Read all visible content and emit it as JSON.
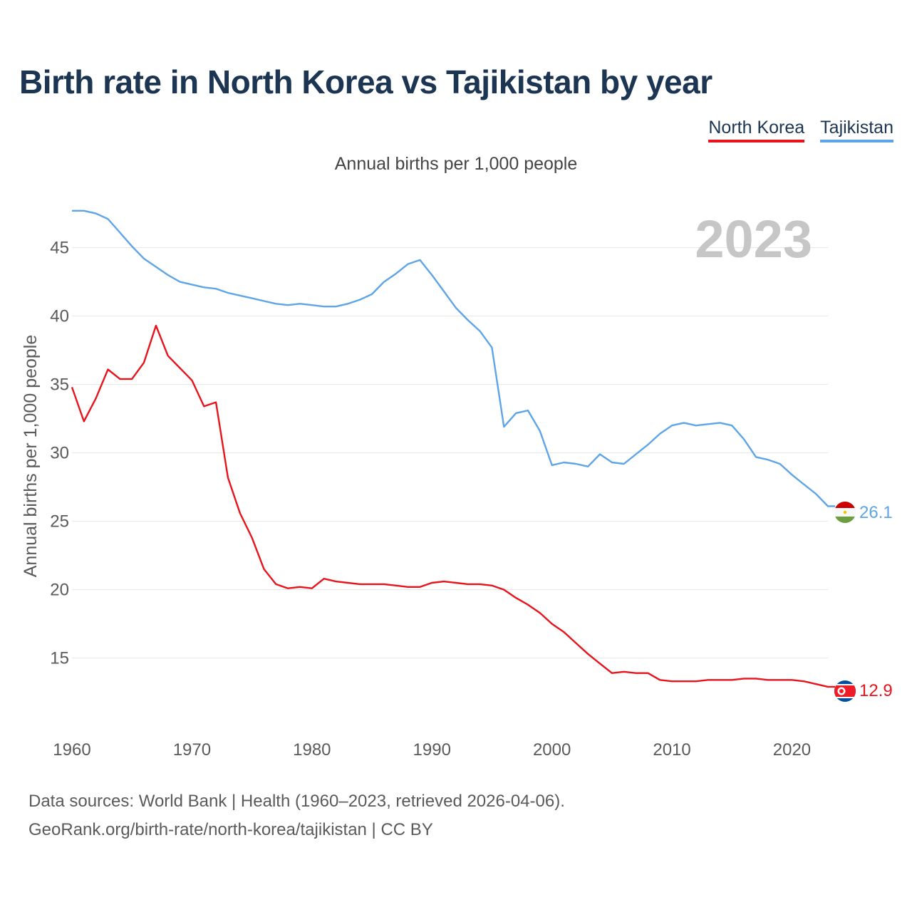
{
  "title": "Birth rate in North Korea vs Tajikistan by year",
  "subtitle": "Annual births per 1,000 people",
  "watermark_year": "2023",
  "source": {
    "line1": "Data sources: World Bank | Health (1960–2023, retrieved 2026-04-06).",
    "line2": "GeoRank.org/birth-rate/north-korea/tajikistan | CC BY"
  },
  "chart_data": {
    "type": "line",
    "title": "Birth rate in North Korea vs Tajikistan by year",
    "ylabel": "Annual births per 1,000 people",
    "xlabel": "",
    "xlim": [
      1960,
      2023
    ],
    "ylim": [
      10.5,
      48
    ],
    "x_ticks": [
      1960,
      1970,
      1980,
      1990,
      2000,
      2010,
      2020
    ],
    "y_ticks": [
      15,
      20,
      25,
      30,
      35,
      40,
      45
    ],
    "grid": true,
    "legend_position": "top-right",
    "x": [
      1960,
      1961,
      1962,
      1963,
      1964,
      1965,
      1966,
      1967,
      1968,
      1969,
      1970,
      1971,
      1972,
      1973,
      1974,
      1975,
      1976,
      1977,
      1978,
      1979,
      1980,
      1981,
      1982,
      1983,
      1984,
      1985,
      1986,
      1987,
      1988,
      1989,
      1990,
      1991,
      1992,
      1993,
      1994,
      1995,
      1996,
      1997,
      1998,
      1999,
      2000,
      2001,
      2002,
      2003,
      2004,
      2005,
      2006,
      2007,
      2008,
      2009,
      2010,
      2011,
      2012,
      2013,
      2014,
      2015,
      2016,
      2017,
      2018,
      2019,
      2020,
      2021,
      2022,
      2023
    ],
    "series": [
      {
        "name": "North Korea",
        "color": "#e8131b",
        "end_label": "12.9",
        "values": [
          34.8,
          32.3,
          34.0,
          36.1,
          35.4,
          35.4,
          36.6,
          39.3,
          37.1,
          36.2,
          35.3,
          33.4,
          33.7,
          28.2,
          25.6,
          23.8,
          21.5,
          20.4,
          20.1,
          20.2,
          20.1,
          20.8,
          20.6,
          20.5,
          20.4,
          20.4,
          20.4,
          20.3,
          20.2,
          20.2,
          20.5,
          20.6,
          20.5,
          20.4,
          20.4,
          20.3,
          20.0,
          19.4,
          18.9,
          18.3,
          17.5,
          16.9,
          16.1,
          15.3,
          14.6,
          13.9,
          14.0,
          13.9,
          13.9,
          13.4,
          13.3,
          13.3,
          13.3,
          13.4,
          13.4,
          13.4,
          13.5,
          13.5,
          13.4,
          13.4,
          13.4,
          13.3,
          13.1,
          12.9
        ]
      },
      {
        "name": "Tajikistan",
        "color": "#5ea5e8",
        "end_label": "26.1",
        "values": [
          47.7,
          47.7,
          47.5,
          47.1,
          46.1,
          45.1,
          44.2,
          43.6,
          43.0,
          42.5,
          42.3,
          42.1,
          42.0,
          41.7,
          41.5,
          41.3,
          41.1,
          40.9,
          40.8,
          40.9,
          40.8,
          40.7,
          40.7,
          40.9,
          41.2,
          41.6,
          42.5,
          43.1,
          43.8,
          44.1,
          43.0,
          41.8,
          40.6,
          39.7,
          38.9,
          37.7,
          31.9,
          32.9,
          33.1,
          31.6,
          29.1,
          29.3,
          29.2,
          29.0,
          29.9,
          29.3,
          29.2,
          29.9,
          30.6,
          31.4,
          32.0,
          32.2,
          32.0,
          32.1,
          32.2,
          32.0,
          31.0,
          29.7,
          29.5,
          29.2,
          28.4,
          27.7,
          27.0,
          26.1
        ]
      }
    ]
  }
}
